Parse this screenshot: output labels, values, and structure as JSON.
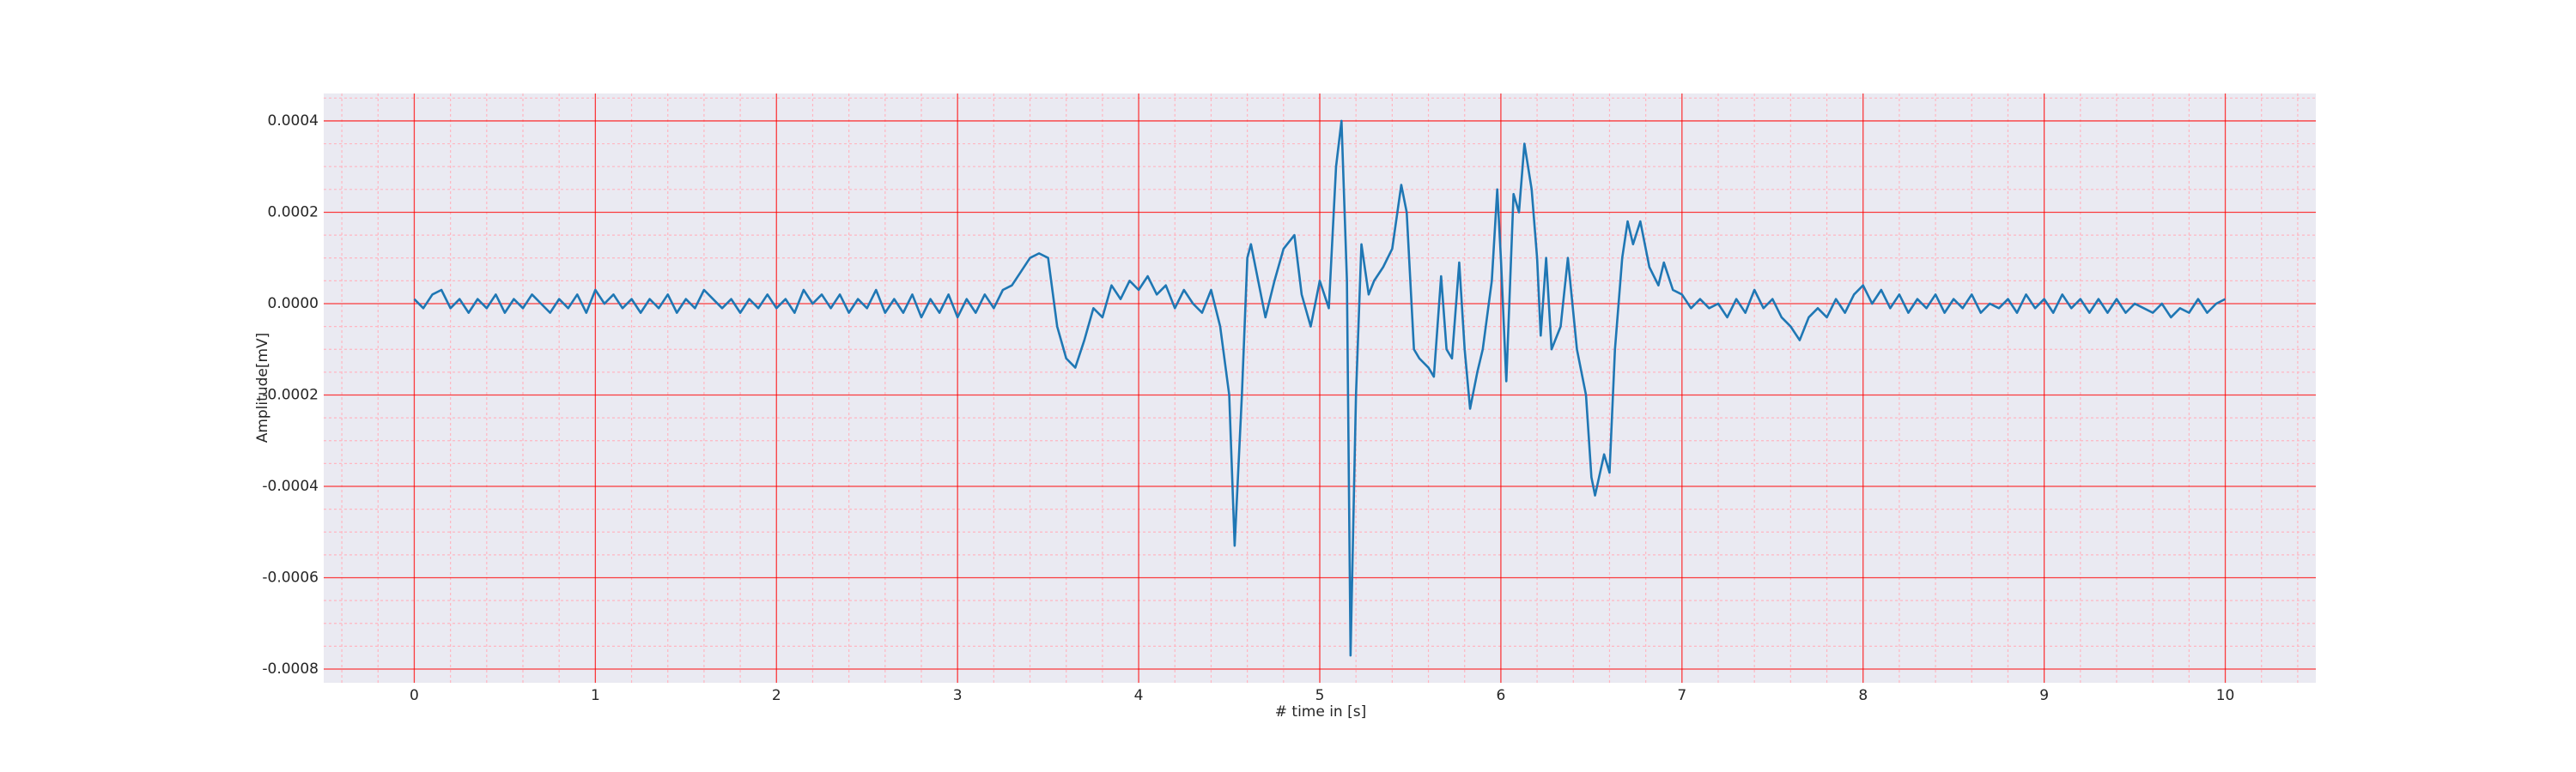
{
  "chart_data": {
    "type": "line",
    "x_label": "# time in [s]",
    "y_label": "Amplitude[mV]",
    "color": "#1f77b4",
    "grid": true,
    "grid_color": "#ff0000",
    "minor_grid": true,
    "minor_grid_color": "#ffb6c1",
    "background": "#eaeaf2",
    "xlim": [
      -0.5,
      10.5
    ],
    "ylim": [
      -0.00083,
      0.00046
    ],
    "xticks": [
      0,
      1,
      2,
      3,
      4,
      5,
      6,
      7,
      8,
      9,
      10
    ],
    "yticks": [
      -0.0008,
      -0.0006,
      -0.0004,
      -0.0002,
      {
        "value": 0,
        "label": "0.0000"
      },
      0.0002,
      0.0004
    ],
    "xminorticks": [
      -0.4,
      -0.2,
      0.2,
      0.4,
      0.6,
      0.8,
      1.2,
      1.4,
      1.6,
      1.8,
      2.2,
      2.4,
      2.6,
      2.8,
      3.2,
      3.4,
      3.6,
      3.8,
      4.2,
      4.4,
      4.6,
      4.8,
      5.2,
      5.4,
      5.6,
      5.8,
      6.2,
      6.4,
      6.6,
      6.8,
      7.2,
      7.4,
      7.6,
      7.8,
      8.2,
      8.4,
      8.6,
      8.8,
      9.2,
      9.4,
      9.6,
      9.8,
      10.2,
      10.4
    ],
    "yminorticks": [
      -0.00075,
      -0.0007,
      -0.00065,
      -0.00055,
      -0.0005,
      -0.00045,
      -0.00035,
      -0.0003,
      -0.00025,
      -0.00015,
      -0.0001,
      -5e-05,
      5e-05,
      0.0001,
      0.00015,
      0.00025,
      0.0003,
      0.00035,
      0.00045
    ],
    "x": [
      0,
      0.05,
      0.1,
      0.15,
      0.2,
      0.25,
      0.3,
      0.35,
      0.4,
      0.45,
      0.5,
      0.55,
      0.6,
      0.65,
      0.7,
      0.75,
      0.8,
      0.85,
      0.9,
      0.95,
      1.0,
      1.05,
      1.1,
      1.15,
      1.2,
      1.25,
      1.3,
      1.35,
      1.4,
      1.45,
      1.5,
      1.55,
      1.6,
      1.65,
      1.7,
      1.75,
      1.8,
      1.85,
      1.9,
      1.95,
      2.0,
      2.05,
      2.1,
      2.15,
      2.2,
      2.25,
      2.3,
      2.35,
      2.4,
      2.45,
      2.5,
      2.55,
      2.6,
      2.65,
      2.7,
      2.75,
      2.8,
      2.85,
      2.9,
      2.95,
      3.0,
      3.05,
      3.1,
      3.15,
      3.2,
      3.25,
      3.3,
      3.35,
      3.4,
      3.45,
      3.5,
      3.55,
      3.6,
      3.65,
      3.7,
      3.75,
      3.8,
      3.85,
      3.9,
      3.95,
      4.0,
      4.05,
      4.1,
      4.15,
      4.2,
      4.25,
      4.3,
      4.35,
      4.4,
      4.45,
      4.5,
      4.53,
      4.57,
      4.6,
      4.62,
      4.66,
      4.7,
      4.75,
      4.8,
      4.86,
      4.9,
      4.95,
      5.0,
      5.05,
      5.09,
      5.12,
      5.15,
      5.17,
      5.2,
      5.23,
      5.27,
      5.3,
      5.35,
      5.4,
      5.45,
      5.48,
      5.52,
      5.55,
      5.6,
      5.63,
      5.67,
      5.7,
      5.73,
      5.77,
      5.8,
      5.83,
      5.87,
      5.9,
      5.95,
      5.98,
      6.0,
      6.03,
      6.07,
      6.1,
      6.13,
      6.17,
      6.2,
      6.22,
      6.25,
      6.28,
      6.33,
      6.37,
      6.42,
      6.47,
      6.5,
      6.52,
      6.57,
      6.6,
      6.63,
      6.67,
      6.7,
      6.73,
      6.77,
      6.82,
      6.87,
      6.9,
      6.95,
      7.0,
      7.05,
      7.1,
      7.15,
      7.2,
      7.25,
      7.3,
      7.35,
      7.4,
      7.45,
      7.5,
      7.55,
      7.6,
      7.65,
      7.7,
      7.75,
      7.8,
      7.85,
      7.9,
      7.95,
      8.0,
      8.05,
      8.1,
      8.15,
      8.2,
      8.25,
      8.3,
      8.35,
      8.4,
      8.45,
      8.5,
      8.55,
      8.6,
      8.65,
      8.7,
      8.75,
      8.8,
      8.85,
      8.9,
      8.95,
      9.0,
      9.05,
      9.1,
      9.15,
      9.2,
      9.25,
      9.3,
      9.35,
      9.4,
      9.45,
      9.5,
      9.55,
      9.6,
      9.65,
      9.7,
      9.75,
      9.8,
      9.85,
      9.9,
      9.95,
      10
    ],
    "values": [
      1e-05,
      -1e-05,
      2e-05,
      3e-05,
      -1e-05,
      1e-05,
      -2e-05,
      1e-05,
      -1e-05,
      2e-05,
      -2e-05,
      1e-05,
      -1e-05,
      2e-05,
      0,
      -2e-05,
      1e-05,
      -1e-05,
      2e-05,
      -2e-05,
      3e-05,
      0,
      2e-05,
      -1e-05,
      1e-05,
      -2e-05,
      1e-05,
      -1e-05,
      2e-05,
      -2e-05,
      1e-05,
      -1e-05,
      3e-05,
      1e-05,
      -1e-05,
      1e-05,
      -2e-05,
      1e-05,
      -1e-05,
      2e-05,
      -1e-05,
      1e-05,
      -2e-05,
      3e-05,
      0,
      2e-05,
      -1e-05,
      2e-05,
      -2e-05,
      1e-05,
      -1e-05,
      3e-05,
      -2e-05,
      1e-05,
      -2e-05,
      2e-05,
      -3e-05,
      1e-05,
      -2e-05,
      2e-05,
      -3e-05,
      1e-05,
      -2e-05,
      2e-05,
      -1e-05,
      3e-05,
      4e-05,
      7e-05,
      0.0001,
      0.00011,
      0.0001,
      -5e-05,
      -0.00012,
      -0.00014,
      -8e-05,
      -1e-05,
      -3e-05,
      4e-05,
      1e-05,
      5e-05,
      3e-05,
      6e-05,
      2e-05,
      4e-05,
      -1e-05,
      3e-05,
      0,
      -2e-05,
      3e-05,
      -5e-05,
      -0.0002,
      -0.00053,
      -0.0002,
      0.0001,
      0.00013,
      5e-05,
      -3e-05,
      5e-05,
      0.00012,
      0.00015,
      2e-05,
      -5e-05,
      5e-05,
      -1e-05,
      0.0003,
      0.0004,
      5e-05,
      -0.00077,
      -0.0002,
      0.00013,
      2e-05,
      5e-05,
      8e-05,
      0.00012,
      0.00026,
      0.0002,
      -0.0001,
      -0.00012,
      -0.00014,
      -0.00016,
      6e-05,
      -0.0001,
      -0.00012,
      9e-05,
      -0.0001,
      -0.00023,
      -0.00015,
      -0.0001,
      5e-05,
      0.00025,
      0.0001,
      -0.00017,
      0.00024,
      0.0002,
      0.00035,
      0.00025,
      0.0001,
      -7e-05,
      0.0001,
      -0.0001,
      -5e-05,
      0.0001,
      -0.0001,
      -0.0002,
      -0.00038,
      -0.00042,
      -0.00033,
      -0.00037,
      -0.0001,
      0.0001,
      0.00018,
      0.00013,
      0.00018,
      8e-05,
      4e-05,
      9e-05,
      3e-05,
      2e-05,
      -1e-05,
      1e-05,
      -1e-05,
      0,
      -3e-05,
      1e-05,
      -2e-05,
      3e-05,
      -1e-05,
      1e-05,
      -3e-05,
      -5e-05,
      -8e-05,
      -3e-05,
      -1e-05,
      -3e-05,
      1e-05,
      -2e-05,
      2e-05,
      4e-05,
      0,
      3e-05,
      -1e-05,
      2e-05,
      -2e-05,
      1e-05,
      -1e-05,
      2e-05,
      -2e-05,
      1e-05,
      -1e-05,
      2e-05,
      -2e-05,
      0,
      -1e-05,
      1e-05,
      -2e-05,
      2e-05,
      -1e-05,
      1e-05,
      -2e-05,
      2e-05,
      -1e-05,
      1e-05,
      -2e-05,
      1e-05,
      -2e-05,
      1e-05,
      -2e-05,
      0,
      -1e-05,
      -2e-05,
      0,
      -3e-05,
      -1e-05,
      -2e-05,
      1e-05,
      -2e-05,
      0,
      1e-05
    ]
  }
}
